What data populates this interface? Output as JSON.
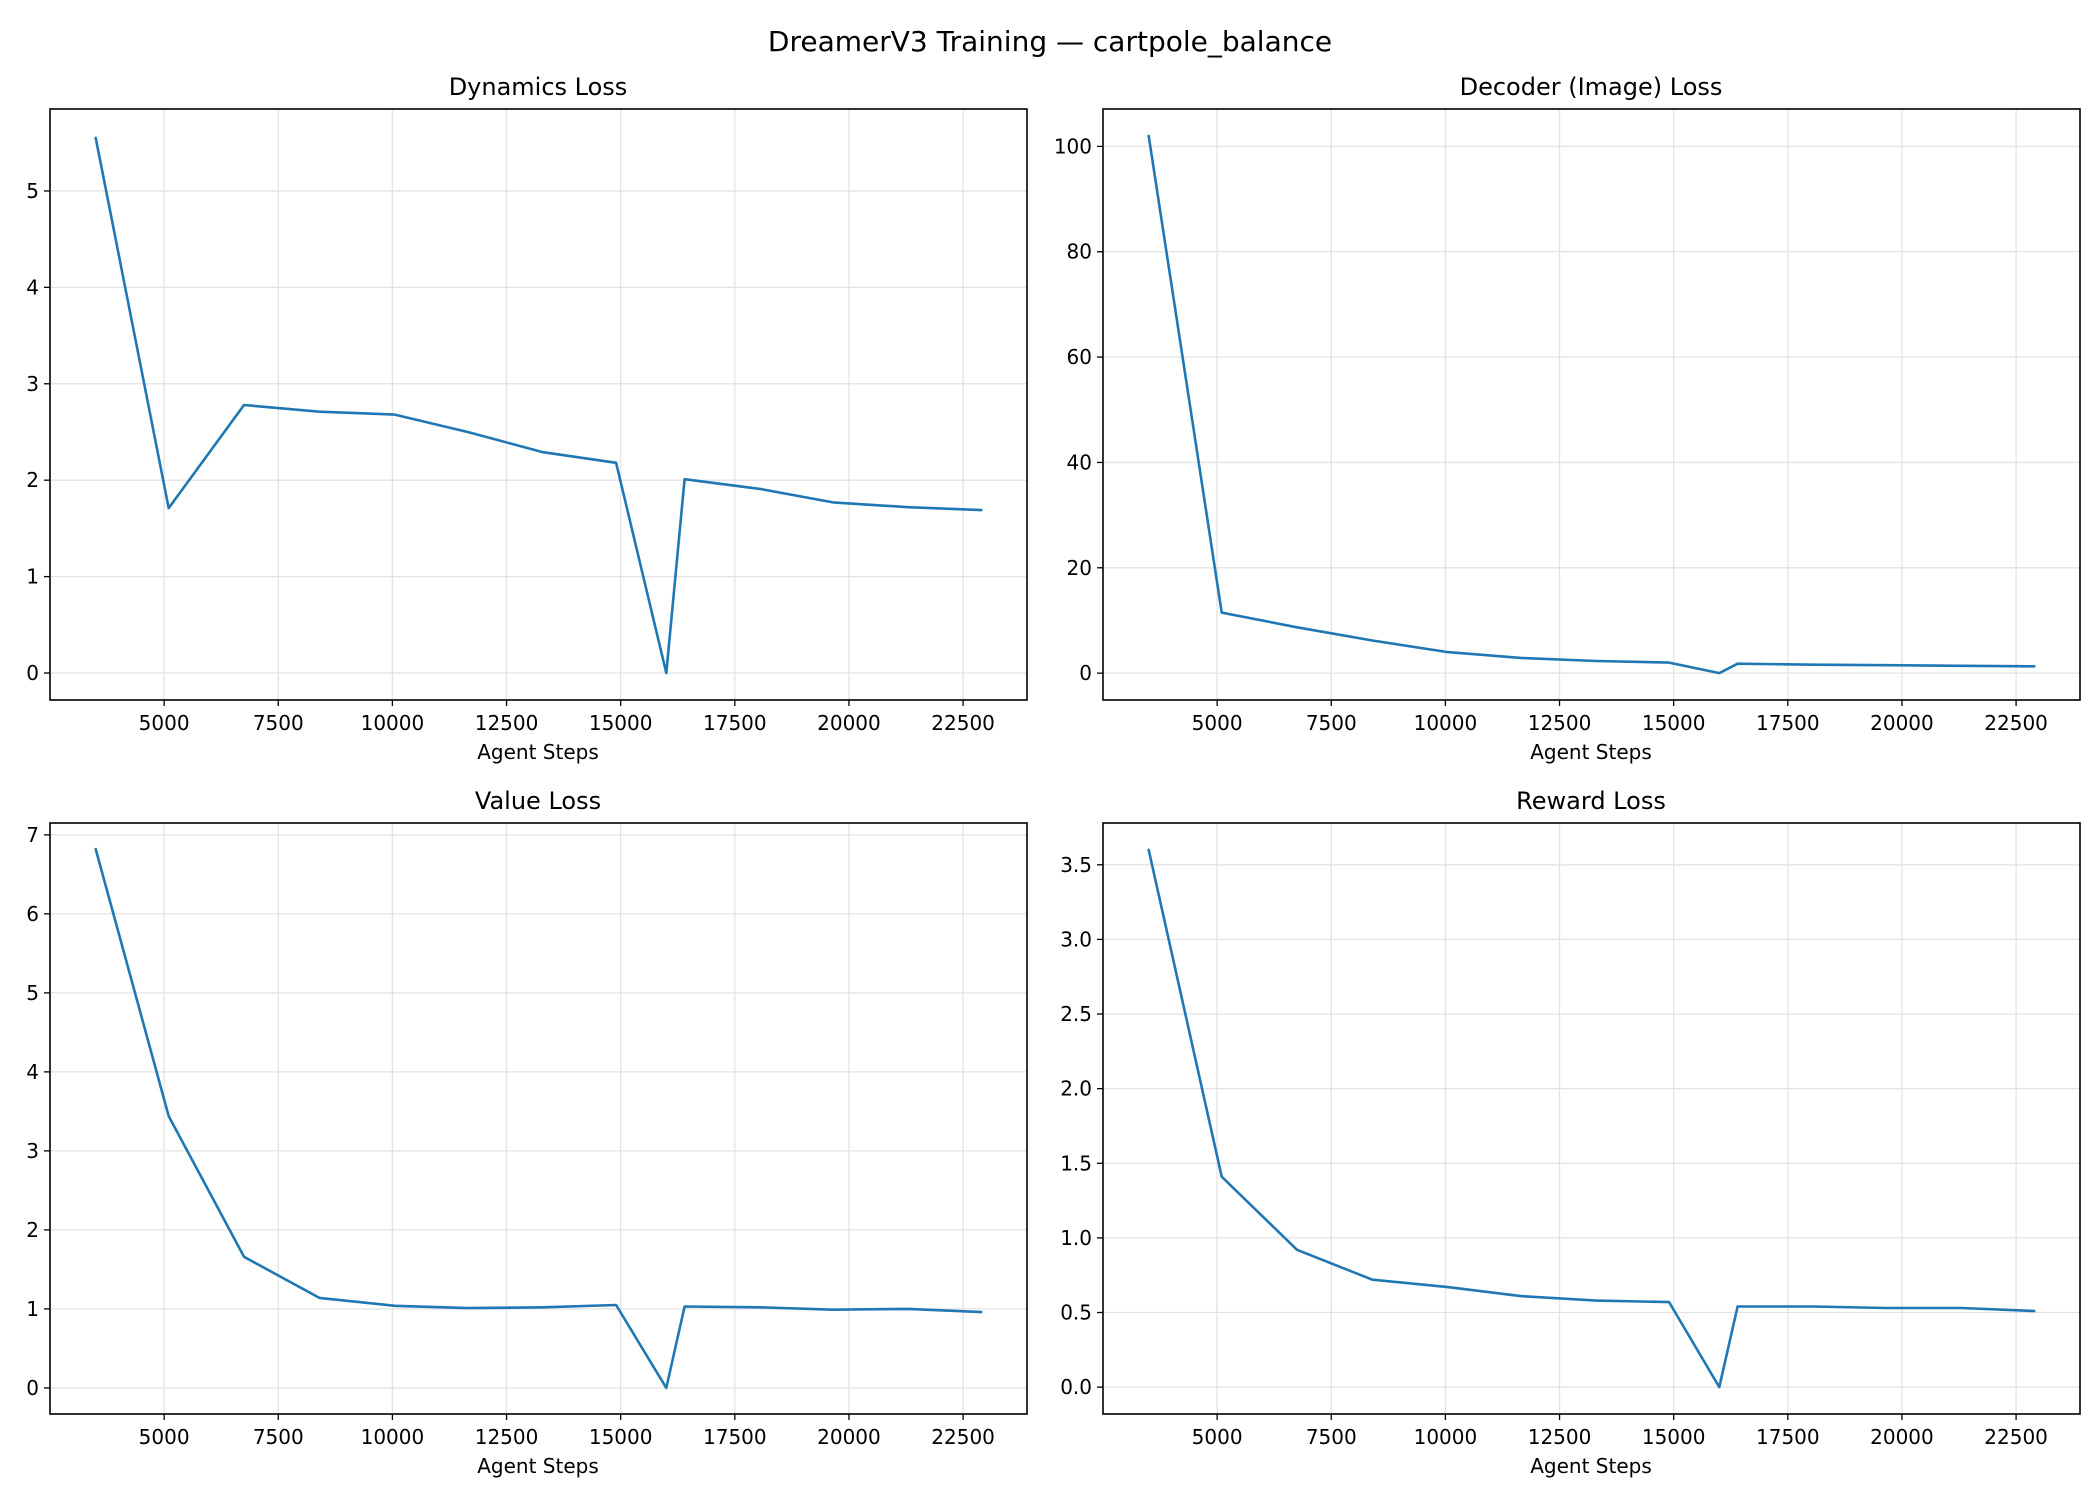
{
  "figure": {
    "title": "DreamerV3 Training — cartpole_balance",
    "line_color": "#1f77b4"
  },
  "chart_data": [
    {
      "type": "line",
      "title": "Dynamics Loss",
      "xlabel": "Agent Steps",
      "ylabel": "",
      "xlim": [
        2500,
        23900
      ],
      "ylim": [
        -0.28,
        5.85
      ],
      "xticks": [
        5000,
        7500,
        10000,
        12500,
        15000,
        17500,
        20000,
        22500
      ],
      "yticks": [
        0,
        1,
        2,
        3,
        4,
        5
      ],
      "ytick_decimals": 0,
      "grid": true,
      "series": [
        {
          "x": [
            3500,
            5100,
            6750,
            8400,
            10050,
            11650,
            13300,
            14900,
            16000,
            16400,
            18050,
            19650,
            21300,
            22900
          ],
          "y": [
            5.55,
            1.71,
            2.78,
            2.71,
            2.68,
            2.5,
            2.29,
            2.18,
            0.0,
            2.01,
            1.91,
            1.77,
            1.72,
            1.69
          ]
        }
      ]
    },
    {
      "type": "line",
      "title": "Decoder (Image) Loss",
      "xlabel": "Agent Steps",
      "ylabel": "",
      "xlim": [
        2500,
        23900
      ],
      "ylim": [
        -5.1,
        107.1
      ],
      "xticks": [
        5000,
        7500,
        10000,
        12500,
        15000,
        17500,
        20000,
        22500
      ],
      "yticks": [
        0,
        20,
        40,
        60,
        80,
        100
      ],
      "ytick_decimals": 0,
      "grid": true,
      "series": [
        {
          "x": [
            3500,
            5100,
            6750,
            8400,
            10050,
            11650,
            13300,
            14900,
            16000,
            16400,
            18050,
            19650,
            21300,
            22900
          ],
          "y": [
            102.0,
            11.5,
            8.7,
            6.2,
            4.0,
            2.9,
            2.3,
            2.0,
            0.0,
            1.8,
            1.6,
            1.5,
            1.4,
            1.3
          ]
        }
      ]
    },
    {
      "type": "line",
      "title": "Value Loss",
      "xlabel": "Agent Steps",
      "ylabel": "",
      "xlim": [
        2500,
        23900
      ],
      "ylim": [
        -0.33,
        7.15
      ],
      "xticks": [
        5000,
        7500,
        10000,
        12500,
        15000,
        17500,
        20000,
        22500
      ],
      "yticks": [
        0,
        1,
        2,
        3,
        4,
        5,
        6,
        7
      ],
      "ytick_decimals": 0,
      "grid": true,
      "series": [
        {
          "x": [
            3500,
            5100,
            6750,
            8400,
            10050,
            11650,
            13300,
            14900,
            16000,
            16400,
            18050,
            19650,
            21300,
            22900
          ],
          "y": [
            6.82,
            3.44,
            1.66,
            1.14,
            1.04,
            1.01,
            1.02,
            1.05,
            0.0,
            1.03,
            1.02,
            0.99,
            1.0,
            0.96
          ]
        }
      ]
    },
    {
      "type": "line",
      "title": "Reward Loss",
      "xlabel": "Agent Steps",
      "ylabel": "",
      "xlim": [
        2500,
        23900
      ],
      "ylim": [
        -0.18,
        3.78
      ],
      "xticks": [
        5000,
        7500,
        10000,
        12500,
        15000,
        17500,
        20000,
        22500
      ],
      "yticks": [
        0.0,
        0.5,
        1.0,
        1.5,
        2.0,
        2.5,
        3.0,
        3.5
      ],
      "ytick_decimals": 1,
      "grid": true,
      "series": [
        {
          "x": [
            3500,
            5100,
            6750,
            8400,
            10050,
            11650,
            13300,
            14900,
            16000,
            16400,
            18050,
            19650,
            21300,
            22900
          ],
          "y": [
            3.6,
            1.41,
            0.92,
            0.72,
            0.67,
            0.61,
            0.58,
            0.57,
            0.0,
            0.54,
            0.54,
            0.53,
            0.53,
            0.51
          ]
        }
      ]
    }
  ]
}
